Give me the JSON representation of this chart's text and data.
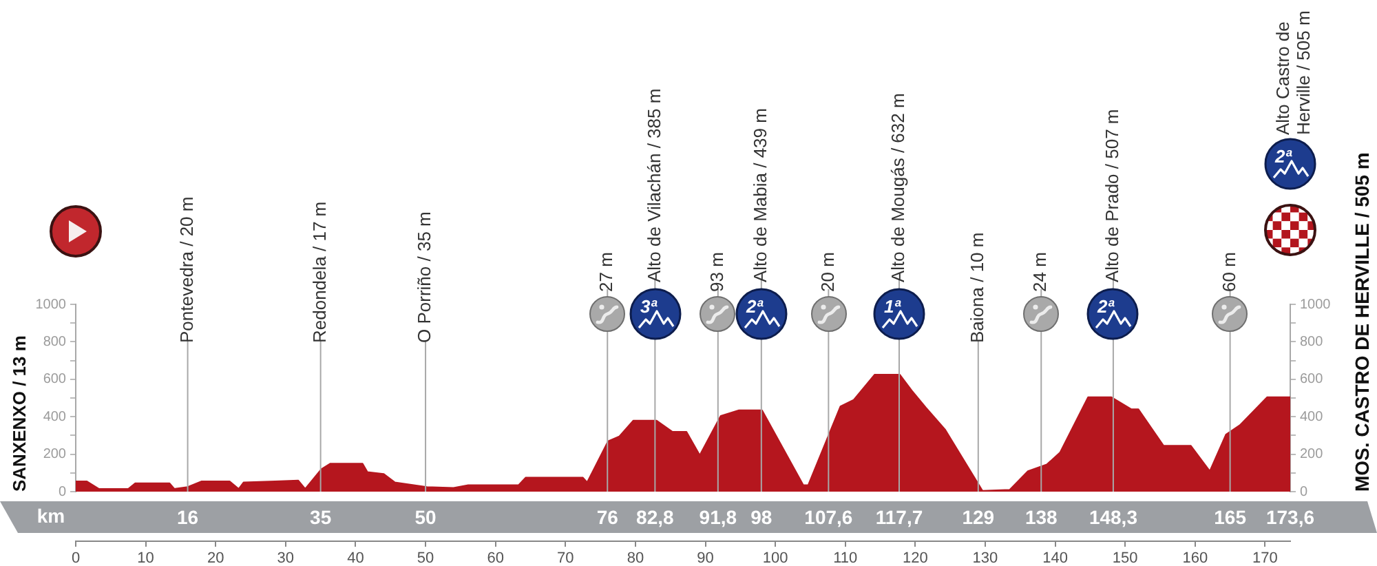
{
  "chart_data": {
    "type": "area",
    "color": "#b5161e",
    "x": [
      0,
      1.6,
      3.3,
      7.5,
      8.5,
      13.4,
      14.1,
      16,
      18,
      22,
      23.3,
      24,
      28.5,
      31.8,
      32.8,
      35.1,
      36.4,
      41,
      41.7,
      44,
      45.6,
      50.2,
      54,
      56.1,
      63.3,
      64.3,
      72.5,
      73.1,
      76.1,
      77.7,
      79.7,
      83,
      85.3,
      87.3,
      89.2,
      92.2,
      94.8,
      98.1,
      104,
      104.7,
      109.3,
      111.2,
      114.2,
      117.8,
      119.5,
      121.5,
      124.3,
      129.6,
      133.5,
      136.1,
      138.8,
      140.7,
      144.7,
      148,
      150.9,
      151.9,
      155.5,
      159.4,
      162.1,
      164.4,
      166.4,
      170.3,
      173.6
    ],
    "values": [
      55,
      55,
      15,
      15,
      45,
      45,
      15,
      25,
      55,
      55,
      15,
      50,
      55,
      60,
      15,
      120,
      150,
      150,
      105,
      95,
      50,
      25,
      20,
      35,
      35,
      75,
      75,
      50,
      270,
      295,
      380,
      380,
      320,
      320,
      195,
      405,
      435,
      435,
      35,
      35,
      455,
      490,
      625,
      625,
      540,
      450,
      330,
      5,
      10,
      110,
      145,
      210,
      505,
      505,
      440,
      440,
      245,
      245,
      110,
      305,
      355,
      505,
      505
    ],
    "xlim": [
      0,
      173.6
    ],
    "xticks": [
      0,
      10,
      20,
      30,
      40,
      50,
      60,
      70,
      80,
      90,
      100,
      110,
      120,
      130,
      140,
      150,
      160,
      170
    ],
    "x2lim": [
      0,
      173.6
    ],
    "x2label": "km",
    "x2ticks": [
      16,
      35,
      50,
      76,
      {
        "value": 82.8,
        "label": "82,8"
      },
      {
        "value": 91.8,
        "label": "91,8"
      },
      98,
      {
        "value": 107.6,
        "label": "107,6"
      },
      {
        "value": 117.7,
        "label": "117,7"
      },
      129,
      138,
      {
        "value": 148.3,
        "label": "148,3"
      },
      165,
      {
        "value": 173.6,
        "label": "173,6"
      }
    ],
    "ylim": [
      0,
      1000
    ],
    "yticks": [
      0,
      {
        "value": 100,
        "label": null
      },
      200,
      {
        "value": 300,
        "label": null
      },
      400,
      {
        "value": 500,
        "label": null
      },
      600,
      {
        "value": 700,
        "label": null
      },
      800,
      {
        "value": 900,
        "label": null
      },
      1000
    ],
    "y2lim": [
      0,
      1000
    ],
    "y2ticks": [
      0,
      {
        "value": 100,
        "label": null
      },
      200,
      {
        "value": 300,
        "label": null
      },
      400,
      {
        "value": 500,
        "label": null
      },
      600,
      {
        "value": 700,
        "label": null
      },
      800,
      {
        "value": 900,
        "label": null
      },
      1000
    ],
    "ylabel": "SANXENXO / 13 m",
    "y2label": "MOS. CASTRO DE HERVILLE / 505 m",
    "ref_lines": [
      {
        "axis": "x",
        "value": 16,
        "label": "Pontevedra / 20 m",
        "color": "#a8a8a8"
      },
      {
        "axis": "x",
        "value": 35,
        "label": "Redondela / 17 m",
        "color": "#a8a8a8"
      },
      {
        "axis": "x",
        "value": 50,
        "label": "O Porriño / 35 m",
        "color": "#a8a8a8"
      },
      {
        "axis": "x",
        "value": 76,
        "label": "27 m",
        "color": "#a8a8a8"
      },
      {
        "axis": "x",
        "value": 82.8,
        "label": "Alto de Vilachán / 385 m",
        "color": "#a8a8a8"
      },
      {
        "axis": "x",
        "value": 91.8,
        "label": "93 m",
        "color": "#a8a8a8"
      },
      {
        "axis": "x",
        "value": 98,
        "label": "Alto de Mabia / 439 m",
        "color": "#a8a8a8"
      },
      {
        "axis": "x",
        "value": 107.6,
        "label": "20 m",
        "color": "#a8a8a8"
      },
      {
        "axis": "x",
        "value": 117.7,
        "label": "Alto de Mougás / 632 m",
        "color": "#a8a8a8"
      },
      {
        "axis": "x",
        "value": 129,
        "label": "Baiona / 10 m",
        "color": "#a8a8a8"
      },
      {
        "axis": "x",
        "value": 138,
        "label": "24 m",
        "color": "#a8a8a8"
      },
      {
        "axis": "x",
        "value": 148.3,
        "label": "Alto de Prado / 507 m",
        "color": "#a8a8a8"
      },
      {
        "axis": "x",
        "value": 165,
        "label": "60 m",
        "color": "#a8a8a8"
      }
    ],
    "annotations": [
      "3ª",
      "2ª",
      "1ª",
      "2ª",
      "2ª",
      "Alto Castro de Herville / 505 m"
    ]
  }
}
